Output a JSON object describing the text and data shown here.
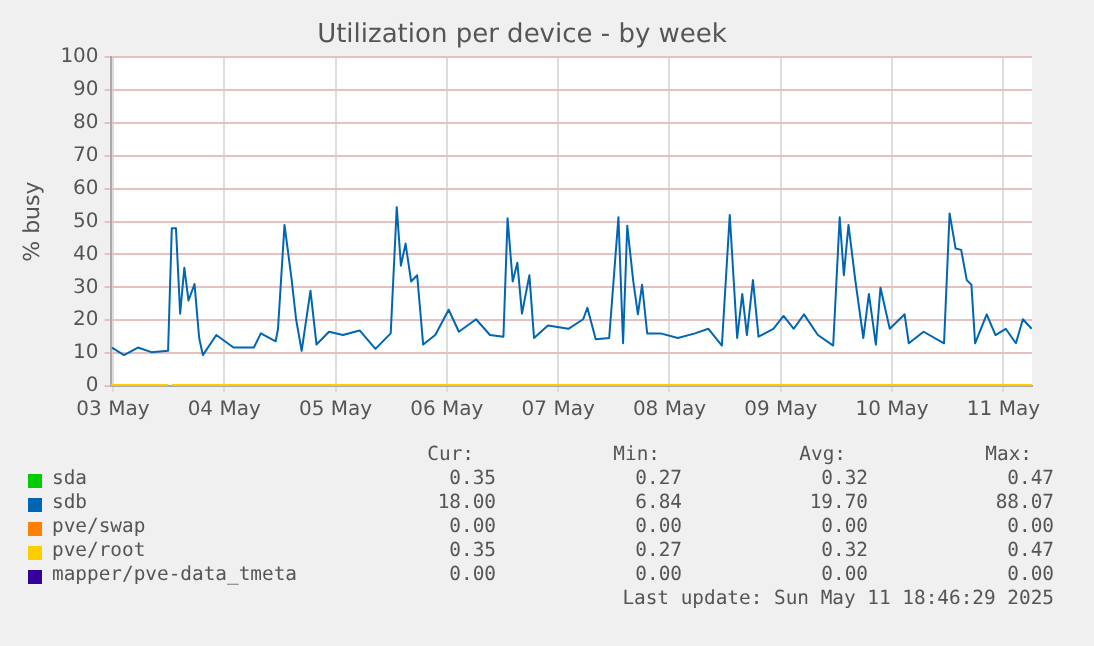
{
  "chart_data": {
    "type": "line",
    "title": "Utilization per device - by week",
    "ylabel": "% busy",
    "xlim": [
      "2025-05-03T11:30",
      "2025-05-11T18:10"
    ],
    "xticks": [
      {
        "value": "2025-05-03T12:00",
        "label": "03 May"
      },
      {
        "value": "2025-05-04T12:00",
        "label": "04 May"
      },
      {
        "value": "2025-05-05T12:00",
        "label": "05 May"
      },
      {
        "value": "2025-05-06T12:00",
        "label": "06 May"
      },
      {
        "value": "2025-05-07T12:00",
        "label": "07 May"
      },
      {
        "value": "2025-05-08T12:00",
        "label": "08 May"
      },
      {
        "value": "2025-05-09T12:00",
        "label": "09 May"
      },
      {
        "value": "2025-05-10T12:00",
        "label": "10 May"
      },
      {
        "value": "2025-05-11T12:00",
        "label": "11 May"
      }
    ],
    "ylim": [
      0,
      100
    ],
    "yticks": [
      0,
      10,
      20,
      30,
      40,
      50,
      60,
      70,
      80,
      90,
      100
    ],
    "grid": true,
    "legend": "bottom",
    "marker": "none",
    "line_style": "solid",
    "series": [
      {
        "name": "sda",
        "color": "#00cc00"
      },
      {
        "name": "sdb",
        "color": "#0066b3",
        "x": [
          "2025-05-03T11:48",
          "2025-05-03T14:24",
          "2025-05-03T17:24",
          "2025-05-03T20:18",
          "2025-05-03T23:54",
          "2025-05-04T00:42",
          "2025-05-04T01:36",
          "2025-05-04T02:30",
          "2025-05-04T03:24",
          "2025-05-04T04:18",
          "2025-05-04T05:36",
          "2025-05-04T06:36",
          "2025-05-04T07:24",
          "2025-05-04T10:18",
          "2025-05-04T14:00",
          "2025-05-04T18:24",
          "2025-05-04T19:54",
          "2025-05-04T23:06",
          "2025-05-04T23:36",
          "2025-05-05T01:00",
          "2025-05-05T02:30",
          "2025-05-05T03:30",
          "2025-05-05T04:42",
          "2025-05-05T06:36",
          "2025-05-05T07:54",
          "2025-05-05T10:36",
          "2025-05-05T13:36",
          "2025-05-05T17:12",
          "2025-05-05T20:36",
          "2025-05-05T23:54",
          "2025-05-06T01:12",
          "2025-05-06T02:06",
          "2025-05-06T03:06",
          "2025-05-06T04:18",
          "2025-05-06T05:36",
          "2025-05-06T06:54",
          "2025-05-06T09:30",
          "2025-05-06T12:24",
          "2025-05-06T14:36",
          "2025-05-06T18:18",
          "2025-05-06T21:18",
          "2025-05-07T00:12",
          "2025-05-07T01:06",
          "2025-05-07T02:12",
          "2025-05-07T03:12",
          "2025-05-07T04:12",
          "2025-05-07T05:48",
          "2025-05-07T06:48",
          "2025-05-07T09:48",
          "2025-05-07T14:12",
          "2025-05-07T17:24",
          "2025-05-07T18:18",
          "2025-05-07T20:06",
          "2025-05-07T23:00",
          "2025-05-08T01:00",
          "2025-05-08T02:00",
          "2025-05-08T02:54",
          "2025-05-08T04:12",
          "2025-05-08T05:12",
          "2025-05-08T06:06",
          "2025-05-08T07:12",
          "2025-05-08T10:06",
          "2025-05-08T13:48",
          "2025-05-08T17:30",
          "2025-05-08T20:24",
          "2025-05-08T23:18",
          "2025-05-09T01:00",
          "2025-05-09T02:36",
          "2025-05-09T03:42",
          "2025-05-09T04:42",
          "2025-05-09T06:00",
          "2025-05-09T07:12",
          "2025-05-09T10:24",
          "2025-05-09T12:36",
          "2025-05-09T14:48",
          "2025-05-09T17:00",
          "2025-05-09T20:00",
          "2025-05-09T23:18",
          "2025-05-10T00:42",
          "2025-05-10T01:36",
          "2025-05-10T02:36",
          "2025-05-10T04:06",
          "2025-05-10T05:48",
          "2025-05-10T07:00",
          "2025-05-10T08:30",
          "2025-05-10T09:30",
          "2025-05-10T11:30",
          "2025-05-10T14:42",
          "2025-05-10T15:36",
          "2025-05-10T18:48",
          "2025-05-10T23:12",
          "2025-05-11T00:24",
          "2025-05-11T01:42",
          "2025-05-11T02:54",
          "2025-05-11T04:06",
          "2025-05-11T05:06",
          "2025-05-11T05:54",
          "2025-05-11T08:24",
          "2025-05-11T10:18",
          "2025-05-11T12:30",
          "2025-05-11T14:42",
          "2025-05-11T16:12",
          "2025-05-11T18:06"
        ],
        "values": [
          11.7,
          9.4,
          11.7,
          10.3,
          10.7,
          48,
          48,
          22,
          36,
          26,
          31,
          14.6,
          9.4,
          15.5,
          11.7,
          11.7,
          16,
          13.6,
          17.4,
          49,
          32.8,
          20.3,
          10.7,
          29,
          12.6,
          16.5,
          15.5,
          16.9,
          11.3,
          16,
          54.4,
          36.6,
          43.3,
          31.8,
          33.7,
          12.6,
          15.5,
          23.2,
          16.5,
          20.3,
          15.5,
          15,
          51,
          31.8,
          37.5,
          22,
          33.7,
          14.6,
          18.4,
          17.4,
          20.3,
          23.8,
          14.2,
          14.6,
          51.3,
          13,
          48.7,
          31.8,
          21.8,
          30.8,
          16,
          16,
          14.6,
          16,
          17.4,
          12.3,
          52,
          14.6,
          28,
          15.5,
          32.2,
          15,
          17.4,
          21.3,
          17.4,
          21.8,
          15.5,
          12.3,
          51.3,
          33.7,
          49,
          31.8,
          14.6,
          28,
          12.6,
          29.9,
          17.4,
          21.8,
          13,
          16.5,
          13,
          52.5,
          41.8,
          41.4,
          32.2,
          30.8,
          13,
          21.8,
          15.5,
          17.4,
          13,
          20.3,
          17.4
        ]
      },
      {
        "name": "pve/swap",
        "color": "#ff8000"
      },
      {
        "name": "pve/root",
        "color": "#ffcc00",
        "x": [
          "2025-05-03T11:36",
          "2025-05-03T23:54",
          "2025-05-04T00:18",
          "2025-05-04T00:42",
          "2025-05-11T18:06"
        ],
        "values": [
          0.3,
          0.3,
          null,
          0.3,
          0.3
        ]
      },
      {
        "name": "mapper/pve-data_tmeta",
        "color": "#330099"
      }
    ],
    "annotations": [
      "Cur:",
      "Min:",
      "Avg:",
      "Max:",
      "0.35",
      "0.27",
      "0.32",
      "0.47",
      "18.00",
      "6.84",
      "19.70",
      "88.07",
      "0.00",
      "0.00",
      "0.00",
      "0.00",
      "0.35",
      "0.27",
      "0.32",
      "0.47",
      "0.00",
      "0.00",
      "0.00",
      "0.00",
      "Last update: Sun May 11 18:46:29 2025"
    ]
  }
}
